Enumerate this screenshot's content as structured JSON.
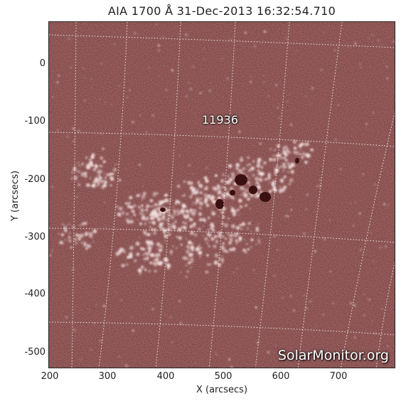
{
  "title": "AIA 1700 Å 31-Dec-2013 16:32:54.710",
  "xlabel": "X (arcsecs)",
  "ylabel": "Y (arcsecs)",
  "x_ticks": [
    "200",
    "300",
    "400",
    "500",
    "600",
    "700"
  ],
  "y_ticks": [
    "0",
    "-100",
    "-200",
    "-300",
    "-400",
    "-500"
  ],
  "region_label": "11936",
  "watermark": "SolarMonitor.org",
  "colors": {
    "disk": "#7a3a3a",
    "bright": "#f4e4e2",
    "grid": "#ffffff"
  }
}
